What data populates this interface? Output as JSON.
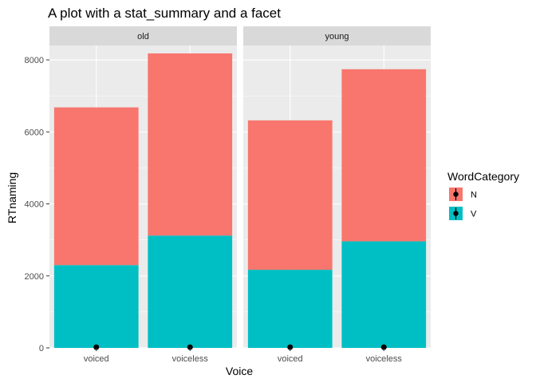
{
  "chart_data": {
    "type": "bar",
    "stacked": true,
    "title": "A plot with a stat_summary and a facet",
    "xlabel": "Voice",
    "ylabel": "RTnaming",
    "ylim": [
      0,
      8400
    ],
    "yticks": [
      0,
      2000,
      4000,
      6000,
      8000
    ],
    "ytick_labels": [
      "0",
      "2000",
      "4000",
      "6000",
      "8000"
    ],
    "categories": [
      "voiced",
      "voiceless"
    ],
    "facets": [
      {
        "label": "old",
        "series": [
          {
            "name": "V",
            "values": [
              2300,
              3120
            ]
          },
          {
            "name": "N",
            "values": [
              4380,
              5060
            ]
          }
        ],
        "summary_points": [
          20,
          20
        ]
      },
      {
        "label": "young",
        "series": [
          {
            "name": "V",
            "values": [
              2170,
              2960
            ]
          },
          {
            "name": "N",
            "values": [
              4150,
              4780
            ]
          }
        ],
        "summary_points": [
          20,
          20
        ]
      }
    ],
    "legend": {
      "title": "WordCategory",
      "position": "right",
      "entries": [
        "N",
        "V"
      ]
    },
    "colors": {
      "N": "#F8766D",
      "V": "#00BFC4",
      "panel": "#EBEBEB",
      "strip": "#D9D9D9",
      "grid": "#FFFFFF",
      "point": "#000000"
    },
    "grid": true
  }
}
